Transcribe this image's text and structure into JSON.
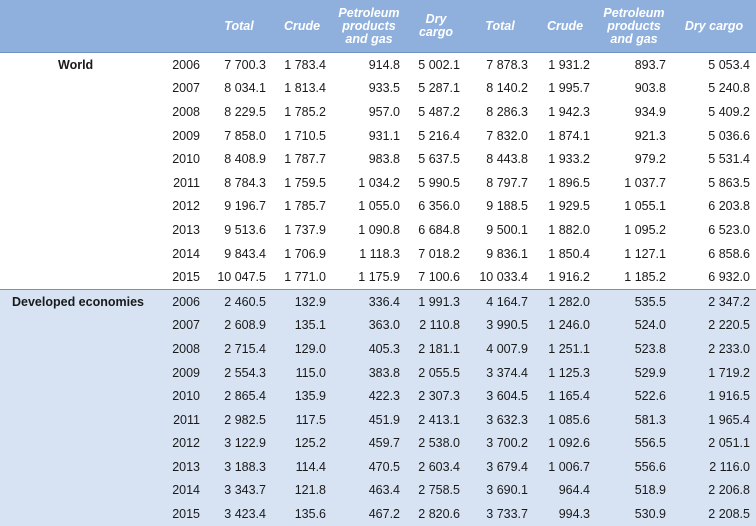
{
  "header": {
    "blank": "",
    "year": "",
    "cols": [
      "Total",
      "Crude",
      "Petroleum products and gas",
      "Dry cargo",
      "Total",
      "Crude",
      "Petroleum products and gas",
      "Dry cargo"
    ]
  },
  "groups": [
    {
      "name": "World",
      "rows": [
        {
          "year": "2006",
          "values": [
            "7 700.3",
            "1 783.4",
            "914.8",
            "5 002.1",
            "7 878.3",
            "1 931.2",
            "893.7",
            "5 053.4"
          ]
        },
        {
          "year": "2007",
          "values": [
            "8 034.1",
            "1 813.4",
            "933.5",
            "5 287.1",
            "8 140.2",
            "1 995.7",
            "903.8",
            "5 240.8"
          ]
        },
        {
          "year": "2008",
          "values": [
            "8 229.5",
            "1 785.2",
            "957.0",
            "5 487.2",
            "8 286.3",
            "1 942.3",
            "934.9",
            "5 409.2"
          ]
        },
        {
          "year": "2009",
          "values": [
            "7 858.0",
            "1 710.5",
            "931.1",
            "5 216.4",
            "7 832.0",
            "1 874.1",
            "921.3",
            "5 036.6"
          ]
        },
        {
          "year": "2010",
          "values": [
            "8 408.9",
            "1 787.7",
            "983.8",
            "5 637.5",
            "8 443.8",
            "1 933.2",
            "979.2",
            "5 531.4"
          ]
        },
        {
          "year": "2011",
          "values": [
            "8 784.3",
            "1 759.5",
            "1 034.2",
            "5 990.5",
            "8 797.7",
            "1 896.5",
            "1 037.7",
            "5 863.5"
          ]
        },
        {
          "year": "2012",
          "values": [
            "9 196.7",
            "1 785.7",
            "1 055.0",
            "6 356.0",
            "9 188.5",
            "1 929.5",
            "1 055.1",
            "6 203.8"
          ]
        },
        {
          "year": "2013",
          "values": [
            "9 513.6",
            "1 737.9",
            "1 090.8",
            "6 684.8",
            "9 500.1",
            "1 882.0",
            "1 095.2",
            "6 523.0"
          ]
        },
        {
          "year": "2014",
          "values": [
            "9 843.4",
            "1 706.9",
            "1 118.3",
            "7 018.2",
            "9 836.1",
            "1 850.4",
            "1 127.1",
            "6 858.6"
          ]
        },
        {
          "year": "2015",
          "values": [
            "10 047.5",
            "1 771.0",
            "1 175.9",
            "7 100.6",
            "10 033.4",
            "1 916.2",
            "1 185.2",
            "6 932.0"
          ]
        }
      ]
    },
    {
      "name": "Developed economies",
      "rows": [
        {
          "year": "2006",
          "values": [
            "2 460.5",
            "132.9",
            "336.4",
            "1 991.3",
            "4 164.7",
            "1 282.0",
            "535.5",
            "2 347.2"
          ]
        },
        {
          "year": "2007",
          "values": [
            "2 608.9",
            "135.1",
            "363.0",
            "2 110.8",
            "3 990.5",
            "1 246.0",
            "524.0",
            "2 220.5"
          ]
        },
        {
          "year": "2008",
          "values": [
            "2 715.4",
            "129.0",
            "405.3",
            "2 181.1",
            "4 007.9",
            "1 251.1",
            "523.8",
            "2 233.0"
          ]
        },
        {
          "year": "2009",
          "values": [
            "2 554.3",
            "115.0",
            "383.8",
            "2 055.5",
            "3 374.4",
            "1 125.3",
            "529.9",
            "1 719.2"
          ]
        },
        {
          "year": "2010",
          "values": [
            "2 865.4",
            "135.9",
            "422.3",
            "2 307.3",
            "3 604.5",
            "1 165.4",
            "522.6",
            "1 916.5"
          ]
        },
        {
          "year": "2011",
          "values": [
            "2 982.5",
            "117.5",
            "451.9",
            "2 413.1",
            "3 632.3",
            "1 085.6",
            "581.3",
            "1 965.4"
          ]
        },
        {
          "year": "2012",
          "values": [
            "3 122.9",
            "125.2",
            "459.7",
            "2 538.0",
            "3 700.2",
            "1 092.6",
            "556.5",
            "2 051.1"
          ]
        },
        {
          "year": "2013",
          "values": [
            "3 188.3",
            "114.4",
            "470.5",
            "2 603.4",
            "3 679.4",
            "1 006.7",
            "556.6",
            "2 116.0"
          ]
        },
        {
          "year": "2014",
          "values": [
            "3 343.7",
            "121.8",
            "463.4",
            "2 758.5",
            "3 690.1",
            "964.4",
            "518.9",
            "2 206.8"
          ]
        },
        {
          "year": "2015",
          "values": [
            "3 423.4",
            "135.6",
            "467.2",
            "2 820.6",
            "3 733.7",
            "994.3",
            "530.9",
            "2 208.5"
          ]
        }
      ]
    }
  ]
}
